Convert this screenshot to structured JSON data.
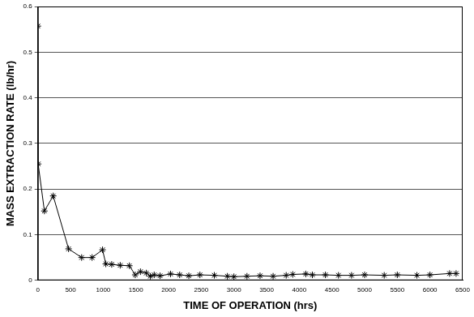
{
  "chart_data": {
    "type": "line",
    "x_label": "TIME OF OPERATION (hrs)",
    "y_label": "MASS EXTRACTION RATE (lb/hr)",
    "x": [
      0,
      5,
      100,
      235,
      470,
      670,
      830,
      990,
      1040,
      1130,
      1260,
      1400,
      1490,
      1570,
      1660,
      1720,
      1780,
      1870,
      2030,
      2170,
      2310,
      2480,
      2700,
      2900,
      3000,
      3200,
      3400,
      3600,
      3800,
      3900,
      4100,
      4200,
      4400,
      4600,
      4800,
      5000,
      5300,
      5500,
      5800,
      6000,
      6300,
      6400
    ],
    "values": [
      0.557,
      0.255,
      0.152,
      0.185,
      0.069,
      0.05,
      0.05,
      0.067,
      0.036,
      0.035,
      0.033,
      0.032,
      0.012,
      0.019,
      0.016,
      0.009,
      0.012,
      0.01,
      0.014,
      0.012,
      0.01,
      0.012,
      0.011,
      0.009,
      0.008,
      0.009,
      0.01,
      0.009,
      0.011,
      0.013,
      0.014,
      0.012,
      0.012,
      0.011,
      0.011,
      0.012,
      0.011,
      0.012,
      0.011,
      0.012,
      0.015,
      0.015
    ],
    "color": "#000000",
    "marker": "star",
    "xlim": [
      0,
      6500
    ],
    "xticks": [
      0,
      500,
      1000,
      1500,
      2000,
      2500,
      3000,
      3500,
      4000,
      4500,
      5000,
      5500,
      6000,
      6500
    ],
    "ylim": [
      0,
      0.6
    ],
    "yticks": [
      0,
      0.1,
      0.2,
      0.3,
      0.4,
      0.5,
      0.6
    ],
    "grid": true
  }
}
